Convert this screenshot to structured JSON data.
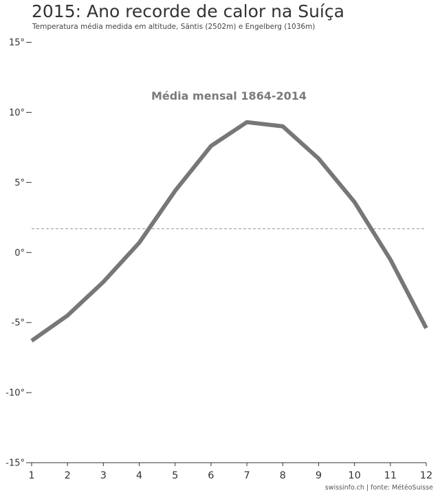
{
  "chart_data": {
    "type": "line",
    "title": "2015: Ano recorde de calor na Suíça",
    "subtitle": "Temperatura média medida em altitude, Säntis (2502m) e Engelberg (1036m)",
    "source": "swissinfo.ch | fonte: MétéoSuisse",
    "annotation": "Média mensal 1864-2014",
    "x": [
      1,
      2,
      3,
      4,
      5,
      6,
      7,
      8,
      9,
      10,
      11,
      12
    ],
    "x_tick_labels": [
      "1",
      "2",
      "3",
      "4",
      "5",
      "6",
      "7",
      "8",
      "9",
      "10",
      "11",
      "12"
    ],
    "y_tick_values": [
      15,
      10,
      5,
      0,
      -5,
      -10,
      -15
    ],
    "y_tick_labels": [
      "15°",
      "10°",
      "5°",
      "0°",
      "-5°",
      "-10°",
      "-15°"
    ],
    "xlim": [
      1,
      12
    ],
    "ylim": [
      -15,
      15
    ],
    "series": [
      {
        "values": [
          -6.3,
          -4.5,
          -2.1,
          0.7,
          4.4,
          7.6,
          9.3,
          9.0,
          6.7,
          3.6,
          -0.5,
          -5.4
        ],
        "color": "#777777"
      }
    ],
    "reference_line": {
      "y": 1.7,
      "style": "dashed",
      "color": "#aaaaaa"
    },
    "grid": false
  }
}
